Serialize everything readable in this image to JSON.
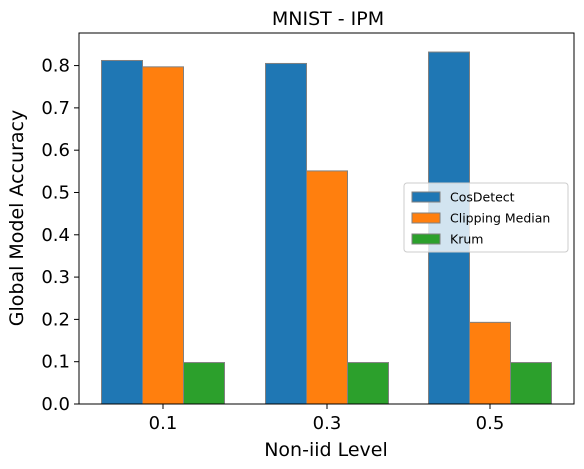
{
  "chart_data": {
    "type": "bar",
    "title": "MNIST - IPM",
    "xlabel": "Non-iid Level",
    "ylabel": "Global Model Accuracy",
    "categories": [
      "0.1",
      "0.3",
      "0.5"
    ],
    "series": [
      {
        "name": "CosDetect",
        "color": "#1f77b4",
        "values": [
          0.812,
          0.805,
          0.832
        ]
      },
      {
        "name": "Clipping Median",
        "color": "#ff7f0e",
        "values": [
          0.797,
          0.551,
          0.193
        ]
      },
      {
        "name": "Krum",
        "color": "#2ca02c",
        "values": [
          0.098,
          0.098,
          0.098
        ]
      }
    ],
    "ylim": [
      0,
      0.877
    ],
    "yticks": [
      "0.0",
      "0.1",
      "0.2",
      "0.3",
      "0.4",
      "0.5",
      "0.6",
      "0.7",
      "0.8"
    ],
    "grid": false,
    "legend_position": "center-right"
  }
}
